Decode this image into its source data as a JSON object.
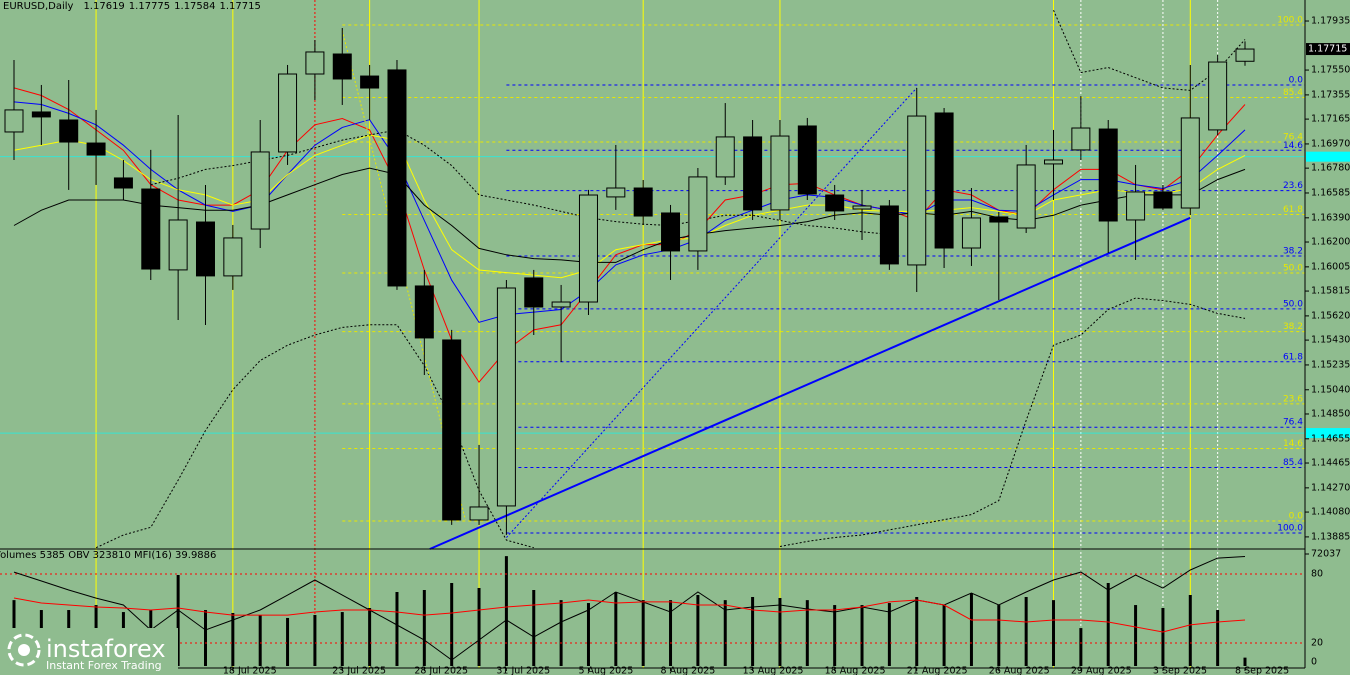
{
  "chart_data": {
    "type": "candlestick",
    "title": "EURUSD,Daily",
    "categories": [
      null,
      null,
      null,
      null,
      null,
      null,
      null,
      null,
      "18 Jul 2025",
      null,
      null,
      null,
      "23 Jul 2025",
      null,
      null,
      "28 Jul 2025",
      null,
      null,
      "31 Jul 2025",
      null,
      null,
      "5 Aug 2025",
      null,
      null,
      "8 Aug 2025",
      null,
      null,
      "13 Aug 2025",
      null,
      null,
      "18 Aug 2025",
      null,
      null,
      "21 Aug 2025",
      null,
      null,
      "26 Aug 2025",
      null,
      null,
      "29 Aug 2025",
      null,
      null,
      "3 Sep 2025",
      null,
      null,
      "8 Sep 2025"
    ],
    "open": [
      1.17064,
      1.17221,
      1.17158,
      1.16977,
      1.16703,
      1.16616,
      1.15981,
      1.16357,
      1.15934,
      1.16302,
      1.16907,
      1.17519,
      1.17676,
      1.17503,
      1.17551,
      1.15855,
      1.15431,
      1.14018,
      1.14128,
      1.15918,
      1.1569,
      1.15729,
      1.16554,
      1.16624,
      1.16428,
      1.1613,
      1.16711,
      1.17025,
      1.16452,
      1.17111,
      1.16569,
      1.16459,
      1.16483,
      1.1602,
      1.17213,
      1.16153,
      1.16397,
      1.1631,
      1.16813,
      1.16923,
      1.17087,
      1.16373,
      1.16593,
      1.16467,
      1.1708,
      1.17619
    ],
    "high": [
      1.17629,
      1.17433,
      1.17472,
      1.17237,
      1.16844,
      1.16923,
      1.17197,
      1.16648,
      1.16334,
      1.17158,
      1.1759,
      1.17786,
      1.1788,
      1.1759,
      1.17629,
      1.15981,
      1.1551,
      1.14607,
      1.15902,
      1.15981,
      1.15863,
      1.16609,
      1.16962,
      1.16687,
      1.16491,
      1.16781,
      1.17291,
      1.17158,
      1.17158,
      1.17174,
      1.16648,
      1.16609,
      1.1653,
      1.17409,
      1.17252,
      1.16624,
      1.16436,
      1.16962,
      1.1708,
      1.17346,
      1.17158,
      1.16805,
      1.16648,
      1.1759,
      1.17668,
      1.17775
    ],
    "low": [
      1.16844,
      1.16962,
      1.16609,
      1.16648,
      1.1653,
      1.15902,
      1.15588,
      1.15549,
      1.15824,
      1.16153,
      1.16805,
      1.17315,
      1.17276,
      1.17158,
      1.15824,
      1.15156,
      1.13979,
      1.13979,
      1.13901,
      1.1547,
      1.15258,
      1.15627,
      1.16452,
      1.16334,
      1.15902,
      1.15981,
      1.16648,
      1.16373,
      1.16373,
      1.1653,
      1.16373,
      1.16216,
      1.15981,
      1.15808,
      1.15996,
      1.16012,
      1.15745,
      1.16271,
      1.1653,
      1.16844,
      1.16114,
      1.16059,
      1.16452,
      1.16412,
      1.1704,
      1.17584
    ],
    "close": [
      1.17237,
      1.17182,
      1.16985,
      1.16883,
      1.16624,
      1.15988,
      1.16373,
      1.15934,
      1.16232,
      1.16907,
      1.17519,
      1.17692,
      1.1748,
      1.17409,
      1.15855,
      1.15447,
      1.14018,
      1.1412,
      1.15839,
      1.1569,
      1.15729,
      1.16569,
      1.16624,
      1.16404,
      1.1613,
      1.16711,
      1.17025,
      1.16452,
      1.17032,
      1.16577,
      1.16444,
      1.16483,
      1.16028,
      1.17189,
      1.16153,
      1.16389,
      1.16357,
      1.16805,
      1.16844,
      1.17095,
      1.16365,
      1.16593,
      1.16467,
      1.17174,
      1.17613,
      1.17715
    ],
    "bear_color": "#000000",
    "ylim": [
      1.1379,
      1.181
    ],
    "yticks": [
      1.17935,
      {
        "value": 1.1755,
        "label": "1.17550"
      },
      1.17355,
      1.17165,
      {
        "value": 1.1697,
        "label": "1.16970"
      },
      {
        "value": 1.1678,
        "label": "1.16780"
      },
      1.16585,
      {
        "value": 1.1639,
        "label": "1.16390"
      },
      {
        "value": 1.162,
        "label": "1.16200"
      },
      1.16005,
      1.15815,
      {
        "value": 1.1562,
        "label": "1.15620"
      },
      {
        "value": 1.1543,
        "label": "1.15430"
      },
      1.15235,
      {
        "value": 1.1504,
        "label": "1.15040"
      },
      {
        "value": 1.1485,
        "label": "1.14850"
      },
      1.14655,
      1.14465,
      {
        "value": 1.1427,
        "label": "1.14270"
      },
      {
        "value": 1.1408,
        "label": "1.14080"
      },
      1.13885
    ],
    "overlays": [
      {
        "color": "#ff0000",
        "dash": false,
        "values": [
          1.1741,
          1.1735,
          1.1724,
          1.1708,
          1.1692,
          1.1665,
          1.1653,
          1.1649,
          1.1649,
          1.1661,
          1.1692,
          1.1712,
          1.1717,
          1.1708,
          1.1665,
          1.1598,
          1.1543,
          1.151,
          1.1535,
          1.1551,
          1.1555,
          1.1582,
          1.161,
          1.1618,
          1.1618,
          1.1629,
          1.1653,
          1.1657,
          1.1665,
          1.1666,
          1.1657,
          1.1649,
          1.1645,
          1.1637,
          1.1661,
          1.1657,
          1.1645,
          1.1641,
          1.1661,
          1.1677,
          1.1677,
          1.1665,
          1.1661,
          1.1677,
          1.1704,
          1.1728
        ]
      },
      {
        "color": "#0000ff",
        "dash": false,
        "values": [
          1.173,
          1.1728,
          1.1721,
          1.1712,
          1.1696,
          1.1677,
          1.1661,
          1.1649,
          1.1644,
          1.1649,
          1.1673,
          1.1696,
          1.171,
          1.1716,
          1.1684,
          1.1637,
          1.159,
          1.1557,
          1.1563,
          1.1565,
          1.1567,
          1.1582,
          1.1602,
          1.161,
          1.1614,
          1.1622,
          1.1637,
          1.1645,
          1.1653,
          1.1657,
          1.1655,
          1.1649,
          1.1645,
          1.1641,
          1.1653,
          1.1653,
          1.1645,
          1.1644,
          1.1657,
          1.1669,
          1.1669,
          1.1665,
          1.1662,
          1.1669,
          1.1688,
          1.1708
        ]
      },
      {
        "color": "#ffff00",
        "dash": false,
        "values": [
          1.1692,
          1.1696,
          1.17,
          1.1696,
          1.1684,
          1.1669,
          1.1661,
          1.1657,
          1.1649,
          1.1653,
          1.1673,
          1.1688,
          1.1696,
          1.1704,
          1.17,
          1.1653,
          1.1614,
          1.1598,
          1.1596,
          1.1594,
          1.1592,
          1.1598,
          1.1614,
          1.1618,
          1.1622,
          1.1623,
          1.1633,
          1.1641,
          1.1645,
          1.1649,
          1.1649,
          1.1645,
          1.1644,
          1.1644,
          1.1645,
          1.1647,
          1.1644,
          1.1641,
          1.1653,
          1.1657,
          1.1661,
          1.1659,
          1.1658,
          1.1662,
          1.1677,
          1.1688
        ]
      },
      {
        "color": "#000000",
        "dash": false,
        "values": [
          1.1633,
          1.1645,
          1.1653,
          1.1653,
          1.1653,
          1.1649,
          1.1647,
          1.1645,
          1.1645,
          1.1649,
          1.1657,
          1.1665,
          1.1673,
          1.1678,
          1.1673,
          1.1649,
          1.1633,
          1.1615,
          1.161,
          1.1607,
          1.1606,
          1.1604,
          1.1604,
          1.1614,
          1.1622,
          1.1626,
          1.1629,
          1.1631,
          1.1633,
          1.1636,
          1.1641,
          1.1643,
          1.1641,
          1.1643,
          1.1641,
          1.1644,
          1.1639,
          1.1637,
          1.1641,
          1.1649,
          1.1653,
          1.1657,
          1.1657,
          1.1657,
          1.1669,
          1.1677
        ]
      },
      {
        "color": "#000000",
        "dash": true,
        "values": [
          null,
          null,
          null,
          null,
          null,
          1.1665,
          1.167,
          1.1677,
          1.168,
          1.1684,
          1.1688,
          1.1694,
          1.17,
          1.1704,
          1.1708,
          1.1696,
          1.168,
          1.1657,
          1.1653,
          1.1649,
          1.1644,
          1.1639,
          1.1636,
          1.1634,
          1.1633,
          1.1637,
          1.1641,
          1.1641,
          1.1637,
          1.1633,
          1.1631,
          1.1628,
          1.1626,
          null,
          null,
          null,
          null,
          null,
          1.1802,
          1.1753,
          1.1757,
          1.1749,
          1.1741,
          1.1739,
          1.1755,
          1.1779
        ]
      },
      {
        "color": "#000000",
        "dash": true,
        "values": [
          null,
          null,
          null,
          1.138,
          1.139,
          1.1396,
          1.1433,
          1.1472,
          1.1504,
          1.1527,
          1.1539,
          1.1547,
          1.1553,
          1.1555,
          1.1555,
          1.1523,
          1.148,
          1.1425,
          1.1386,
          1.138,
          null,
          null,
          null,
          null,
          null,
          null,
          null,
          null,
          1.1381,
          1.1385,
          1.1388,
          1.139,
          1.1394,
          1.1398,
          1.1402,
          1.1406,
          1.1417,
          1.148,
          1.1539,
          1.1547,
          1.1567,
          1.1576,
          1.1574,
          1.1571,
          1.1564,
          1.156
        ]
      }
    ],
    "fib_sets": [
      {
        "color": "#e8e800",
        "start": 12,
        "levels": [
          {
            "value": 1.17904,
            "label": "100.0"
          },
          {
            "value": 1.17335,
            "label": "85.4"
          },
          {
            "value": 1.16985,
            "label": "76.4"
          },
          {
            "value": 1.16416,
            "label": "61.8"
          },
          {
            "value": 1.15957,
            "label": "50.0"
          },
          {
            "value": 1.15497,
            "label": "38.2"
          },
          {
            "value": 1.14929,
            "label": "23.6"
          },
          {
            "value": 1.14579,
            "label": "14.6"
          },
          {
            "value": 1.1401,
            "label": "0.0"
          }
        ]
      },
      {
        "color": "#0000ff",
        "start": 18,
        "levels": [
          {
            "value": 1.17433,
            "label": "0.0"
          },
          {
            "value": 1.1692,
            "label": "14.6"
          },
          {
            "value": 1.16603,
            "label": "23.6"
          },
          {
            "value": 1.1609,
            "label": "38.2"
          },
          {
            "value": 1.15675,
            "label": "50.0"
          },
          {
            "value": 1.1526,
            "label": "61.8"
          },
          {
            "value": 1.14746,
            "label": "76.4"
          },
          {
            "value": 1.1443,
            "label": "85.4"
          },
          {
            "value": 1.13916,
            "label": "100.0"
          }
        ]
      }
    ],
    "trendlines": [
      {
        "color": "#0000ff",
        "width": 2,
        "dash": false,
        "x": [
          15.2,
          43
        ],
        "y": [
          1.1379,
          1.1639
        ]
      },
      {
        "color": "#0000ff",
        "width": 1,
        "dash": true,
        "x": [
          18,
          33
        ],
        "y": [
          1.1388,
          1.1741
        ]
      },
      {
        "color": "#e8e800",
        "width": 1,
        "dash": true,
        "x": [
          12,
          16.5
        ],
        "y": [
          1.1786,
          1.1402
        ]
      }
    ],
    "vlines": [
      {
        "x": 3,
        "color": "#ffff00",
        "dash": false
      },
      {
        "x": 8,
        "color": "#ffff00",
        "dash": false
      },
      {
        "x": 11,
        "color": "#ff0000",
        "dash": true
      },
      {
        "x": 13,
        "color": "#ffff00",
        "dash": false
      },
      {
        "x": 17,
        "color": "#ffff00",
        "dash": false
      },
      {
        "x": 23,
        "color": "#ffff00",
        "dash": false
      },
      {
        "x": 28,
        "color": "#ffff00",
        "dash": false
      },
      {
        "x": 38,
        "color": "#ffff00",
        "dash": false
      },
      {
        "x": 39,
        "color": "#ffffff",
        "dash": true
      },
      {
        "x": 42,
        "color": "#ffffff",
        "dash": true
      },
      {
        "x": 43,
        "color": "#ffff00",
        "dash": false
      },
      {
        "x": 44,
        "color": "#ffffff",
        "dash": true
      }
    ],
    "hlevels": [
      {
        "value": 1.1687,
        "color": "#00ffff"
      },
      {
        "value": 1.147,
        "color": "#00ffff"
      }
    ],
    "indicator": {
      "label": "Volumes 5385  OBV 323810  MFI(16) 39.9886",
      "volumes": [
        42400,
        36000,
        36000,
        39200,
        34700,
        36000,
        58500,
        36000,
        34100,
        32800,
        30900,
        32800,
        34700,
        37300,
        47600,
        48900,
        53400,
        50200,
        70700,
        48900,
        42400,
        40500,
        47600,
        42400,
        42400,
        45700,
        42400,
        44400,
        43700,
        42400,
        39200,
        39200,
        40500,
        44400,
        39200,
        46900,
        39200,
        44400,
        42400,
        24400,
        53400,
        39200,
        37300,
        45700,
        36000,
        5385
      ],
      "vlim": [
        0,
        72037
      ],
      "vticks": [
        72037
      ],
      "obv": [
        306200,
        296100,
        285900,
        276800,
        268900,
        240700,
        263300,
        240700,
        252000,
        263300,
        280200,
        297200,
        280200,
        263300,
        246300,
        229400,
        206800,
        229400,
        252000,
        232800,
        249700,
        263300,
        283600,
        272300,
        261000,
        283600,
        263300,
        266700,
        268900,
        264400,
        261000,
        266700,
        261000,
        274600,
        268900,
        282500,
        268900,
        283600,
        297200,
        306200,
        285900,
        302800,
        288100,
        308500,
        322000,
        323810
      ],
      "obvlim": [
        200000,
        330000
      ],
      "obv_color": "#000000",
      "mfi": [
        59.1,
        54.8,
        53.0,
        51.3,
        50.4,
        48.7,
        50.4,
        47.0,
        44.3,
        44.3,
        44.3,
        47.0,
        48.7,
        48.7,
        47.0,
        44.3,
        46.1,
        48.7,
        51.3,
        53.0,
        54.8,
        57.4,
        54.8,
        55.7,
        55.7,
        53.0,
        53.0,
        48.7,
        47.0,
        48.7,
        48.7,
        51.3,
        55.7,
        57.4,
        53.0,
        40.0,
        40.0,
        38.3,
        40.0,
        40.0,
        38.3,
        33.9,
        29.6,
        35.7,
        38.3,
        39.9886
      ],
      "mfilim": [
        0,
        100
      ],
      "mfiticks": [
        80,
        20,
        0
      ],
      "mfi_color": "#ff0000"
    },
    "logo": {
      "name": "instaforex",
      "tagline": "Instant Forex Trading"
    }
  }
}
